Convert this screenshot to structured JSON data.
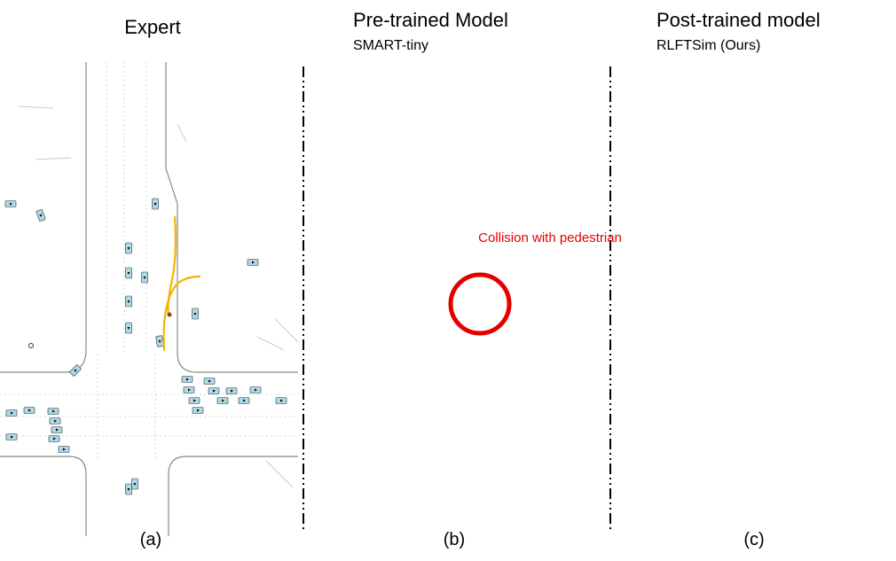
{
  "panels": [
    {
      "title": "Expert",
      "caption": "(a)"
    },
    {
      "title": "Pre-trained Model",
      "subtitle": "SMART-tiny",
      "caption": "(b)",
      "annotation": "Collision with pedestrian"
    },
    {
      "title": "Post-trained model",
      "subtitle": "RLFTSim (Ours)",
      "caption": "(c)"
    }
  ]
}
